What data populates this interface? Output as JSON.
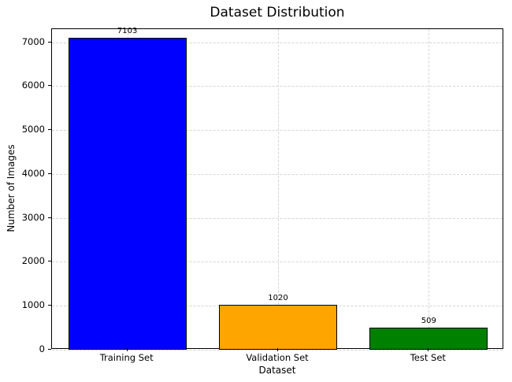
{
  "chart_data": {
    "type": "bar",
    "title": "Dataset Distribution",
    "xlabel": "Dataset",
    "ylabel": "Number of Images",
    "categories": [
      "Training Set",
      "Validation Set",
      "Test Set"
    ],
    "values": [
      7103,
      1020,
      509
    ],
    "bar_colors": [
      "#0000ff",
      "#ffa500",
      "#008000"
    ],
    "bar_edge_color": "#000000",
    "value_labels": [
      "7103",
      "1020",
      "509"
    ],
    "yticks": [
      0,
      1000,
      2000,
      3000,
      4000,
      5000,
      6000,
      7000
    ],
    "ylim": [
      0,
      7300
    ],
    "grid": "dashed, both axes",
    "legend_position": "none"
  }
}
